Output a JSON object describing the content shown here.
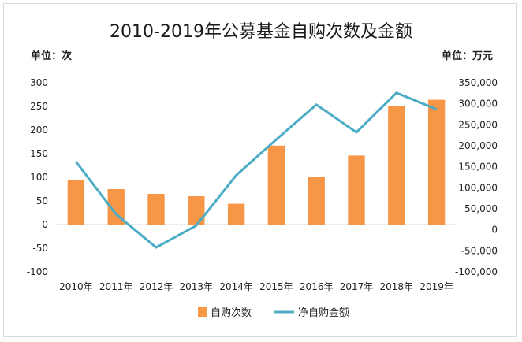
{
  "chart_data": {
    "type": "bar",
    "title": "2010-2019年公募基金自购次数及金额",
    "left_unit": "单位：次",
    "right_unit": "单位：万元",
    "categories": [
      "2010年",
      "2011年",
      "2012年",
      "2013年",
      "2014年",
      "2015年",
      "2016年",
      "2017年",
      "2018年",
      "2019年"
    ],
    "left_axis": {
      "min": -100,
      "max": 300,
      "ticks": [
        "300",
        "250",
        "200",
        "150",
        "100",
        "50",
        "0",
        "-50",
        "-100"
      ]
    },
    "right_axis": {
      "min": -100000,
      "max": 350000,
      "ticks": [
        "350,000",
        "300,000",
        "250,000",
        "200,000",
        "150,000",
        "100,000",
        "50,000",
        "0",
        "-50,000",
        "-100,000"
      ]
    },
    "series": [
      {
        "name": "自购次数",
        "type": "bar",
        "axis": "left",
        "color": "#f79646",
        "values": [
          95,
          75,
          65,
          60,
          44,
          167,
          101,
          146,
          250,
          264
        ]
      },
      {
        "name": "净自购金额",
        "type": "line",
        "axis": "right",
        "color": "#4bacc6",
        "values": [
          162000,
          37000,
          -42000,
          10000,
          130000,
          215000,
          298000,
          232000,
          326000,
          287000
        ]
      }
    ],
    "grid": false,
    "legend": "bottom"
  }
}
